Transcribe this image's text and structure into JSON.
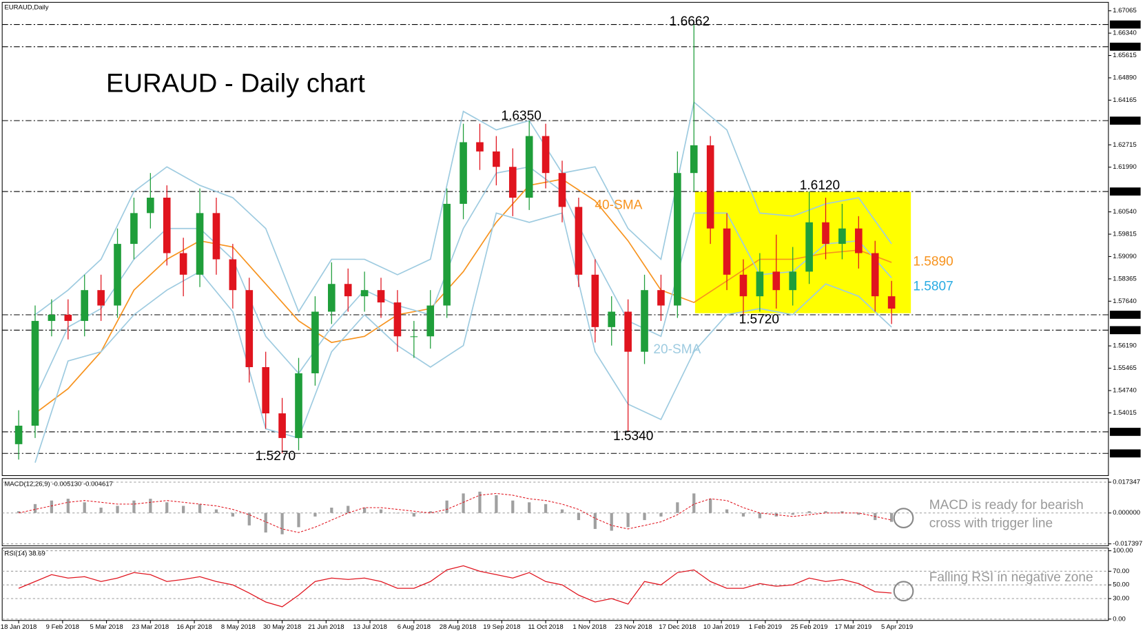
{
  "chart_data": [
    {
      "type": "candlestick",
      "title": "EURAUD - Daily chart",
      "header": "EURAUD,Daily",
      "up_color": "#1f9e3a",
      "down_color": "#e0141e",
      "x": [
        0,
        6,
        12,
        18,
        24,
        30,
        36,
        42,
        48,
        54,
        60,
        66,
        72,
        78,
        84,
        90,
        96,
        102,
        108,
        114,
        120,
        126,
        132,
        138,
        144,
        150,
        156,
        162,
        168,
        174,
        180,
        186,
        192,
        198,
        204,
        210,
        216,
        222,
        228,
        234,
        240,
        246,
        252,
        258,
        264,
        270,
        276,
        282,
        288,
        294,
        300,
        306,
        312,
        318
      ],
      "open": [
        1.53,
        1.536,
        1.57,
        1.572,
        1.57,
        1.58,
        1.575,
        1.595,
        1.605,
        1.61,
        1.592,
        1.585,
        1.605,
        1.59,
        1.58,
        1.555,
        1.54,
        1.532,
        1.553,
        1.573,
        1.582,
        1.578,
        1.58,
        1.576,
        1.565,
        1.565,
        1.575,
        1.608,
        1.628,
        1.625,
        1.62,
        1.61,
        1.63,
        1.618,
        1.607,
        1.585,
        1.568,
        1.573,
        1.56,
        1.58,
        1.575,
        1.618,
        1.627,
        1.6,
        1.585,
        1.578,
        1.586,
        1.58,
        1.586,
        1.602,
        1.595,
        1.6,
        1.592,
        1.578
      ],
      "high": [
        1.541,
        1.575,
        1.577,
        1.577,
        1.585,
        1.585,
        1.6,
        1.61,
        1.618,
        1.614,
        1.597,
        1.613,
        1.61,
        1.595,
        1.584,
        1.56,
        1.545,
        1.558,
        1.578,
        1.589,
        1.587,
        1.586,
        1.584,
        1.58,
        1.57,
        1.58,
        1.613,
        1.634,
        1.634,
        1.63,
        1.626,
        1.635,
        1.634,
        1.622,
        1.61,
        1.59,
        1.578,
        1.577,
        1.585,
        1.585,
        1.625,
        1.6662,
        1.63,
        1.605,
        1.59,
        1.592,
        1.598,
        1.594,
        1.612,
        1.61,
        1.608,
        1.604,
        1.596,
        1.583
      ],
      "low": [
        1.525,
        1.532,
        1.565,
        1.564,
        1.565,
        1.57,
        1.571,
        1.59,
        1.6,
        1.588,
        1.578,
        1.581,
        1.585,
        1.574,
        1.55,
        1.535,
        1.527,
        1.528,
        1.549,
        1.569,
        1.573,
        1.573,
        1.571,
        1.56,
        1.558,
        1.561,
        1.571,
        1.603,
        1.619,
        1.614,
        1.604,
        1.606,
        1.613,
        1.602,
        1.581,
        1.563,
        1.562,
        1.534,
        1.556,
        1.57,
        1.571,
        1.612,
        1.595,
        1.58,
        1.572,
        1.573,
        1.574,
        1.575,
        1.582,
        1.59,
        1.59,
        1.587,
        1.573,
        1.569
      ],
      "close": [
        1.536,
        1.57,
        1.572,
        1.57,
        1.58,
        1.575,
        1.595,
        1.605,
        1.61,
        1.592,
        1.585,
        1.605,
        1.59,
        1.58,
        1.555,
        1.54,
        1.532,
        1.553,
        1.573,
        1.582,
        1.578,
        1.58,
        1.576,
        1.565,
        1.565,
        1.575,
        1.608,
        1.628,
        1.625,
        1.62,
        1.61,
        1.63,
        1.618,
        1.607,
        1.585,
        1.568,
        1.573,
        1.56,
        1.58,
        1.575,
        1.618,
        1.627,
        1.6,
        1.585,
        1.578,
        1.586,
        1.58,
        1.586,
        1.602,
        1.595,
        1.6,
        1.592,
        1.578,
        1.574
      ],
      "lines": [
        {
          "name": "40-SMA",
          "color": "#f7931e",
          "x": [
            6,
            18,
            30,
            42,
            54,
            66,
            78,
            90,
            102,
            114,
            126,
            138,
            150,
            162,
            174,
            186,
            198,
            210,
            222,
            234,
            246,
            258,
            270,
            282,
            294,
            306,
            318
          ],
          "values": [
            1.54,
            1.548,
            1.56,
            1.58,
            1.59,
            1.596,
            1.594,
            1.582,
            1.57,
            1.563,
            1.565,
            1.572,
            1.574,
            1.586,
            1.602,
            1.614,
            1.616,
            1.609,
            1.596,
            1.58,
            1.576,
            1.583,
            1.59,
            1.59,
            1.592,
            1.593,
            1.589
          ]
        },
        {
          "name": "20-SMA",
          "color": "#9ecbe0",
          "x": [
            6,
            18,
            30,
            42,
            54,
            66,
            78,
            90,
            102,
            114,
            126,
            138,
            150,
            162,
            174,
            186,
            198,
            210,
            222,
            234,
            246,
            258,
            270,
            282,
            294,
            306,
            318
          ],
          "values": [
            1.545,
            1.568,
            1.574,
            1.59,
            1.6,
            1.6,
            1.59,
            1.565,
            1.553,
            1.568,
            1.58,
            1.575,
            1.572,
            1.6,
            1.618,
            1.62,
            1.612,
            1.59,
            1.57,
            1.565,
            1.605,
            1.605,
            1.585,
            1.586,
            1.595,
            1.596,
            1.584
          ]
        },
        {
          "color": "#9ecbe0",
          "x": [
            6,
            18,
            30,
            42,
            54,
            66,
            78,
            90,
            102,
            114,
            126,
            138,
            150,
            162,
            174,
            186,
            198,
            210,
            222,
            234,
            246,
            258,
            270,
            282,
            294,
            306,
            318
          ],
          "values": [
            1.572,
            1.58,
            1.59,
            1.612,
            1.62,
            1.614,
            1.61,
            1.6,
            1.573,
            1.59,
            1.59,
            1.585,
            1.59,
            1.638,
            1.632,
            1.635,
            1.618,
            1.62,
            1.6,
            1.59,
            1.641,
            1.632,
            1.605,
            1.604,
            1.608,
            1.61,
            1.595
          ]
        },
        {
          "color": "#9ecbe0",
          "x": [
            6,
            18,
            30,
            42,
            54,
            66,
            78,
            90,
            102,
            114,
            126,
            138,
            150,
            162,
            174,
            186,
            198,
            210,
            222,
            234,
            246,
            258,
            270,
            282,
            294,
            306,
            318
          ],
          "values": [
            1.524,
            1.557,
            1.56,
            1.572,
            1.58,
            1.586,
            1.573,
            1.535,
            1.532,
            1.56,
            1.572,
            1.562,
            1.555,
            1.562,
            1.605,
            1.602,
            1.605,
            1.56,
            1.543,
            1.538,
            1.56,
            1.572,
            1.574,
            1.572,
            1.582,
            1.578,
            1.568
          ]
        }
      ],
      "xlim": [
        -6,
        397
      ],
      "xticks": [
        {
          "value": 0,
          "label": "18 Jan 2018"
        },
        {
          "value": 16,
          "label": "9 Feb 2018"
        },
        {
          "value": 32,
          "label": "5 Mar 2018"
        },
        {
          "value": 48,
          "label": "23 Mar 2018"
        },
        {
          "value": 64,
          "label": "16 Apr 2018"
        },
        {
          "value": 80,
          "label": "8 May 2018"
        },
        {
          "value": 96,
          "label": "30 May 2018"
        },
        {
          "value": 112,
          "label": "21 Jun 2018"
        },
        {
          "value": 128,
          "label": "13 Jul 2018"
        },
        {
          "value": 144,
          "label": "6 Aug 2018"
        },
        {
          "value": 160,
          "label": "28 Aug 2018"
        },
        {
          "value": 176,
          "label": "19 Sep 2018"
        },
        {
          "value": 192,
          "label": "11 Oct 2018"
        },
        {
          "value": 208,
          "label": "1 Nov 2018"
        },
        {
          "value": 224,
          "label": "23 Nov 2018"
        },
        {
          "value": 240,
          "label": "17 Dec 2018"
        },
        {
          "value": 256,
          "label": "10 Jan 2019"
        },
        {
          "value": 272,
          "label": "1 Feb 2019"
        },
        {
          "value": 288,
          "label": "25 Feb 2019"
        },
        {
          "value": 304,
          "label": "17 Mar 2019"
        },
        {
          "value": 320,
          "label": "5 Apr 2019"
        }
      ],
      "ylim": [
        1.5198,
        1.6734
      ],
      "yticks": [
        1.67065,
        {
          "value": 1.6634,
          "label": "1.66340"
        },
        1.65615,
        {
          "value": 1.6489,
          "label": "1.64890"
        },
        1.64165,
        1.62715,
        {
          "value": 1.6199,
          "label": "1.61990"
        },
        {
          "value": 1.6054,
          "label": "1.60540"
        },
        1.59815,
        {
          "value": 1.5909,
          "label": "1.59090"
        },
        1.58365,
        {
          "value": 1.5764,
          "label": "1.57640"
        },
        {
          "value": 1.5619,
          "label": "1.56190"
        },
        1.55465,
        {
          "value": 1.5474,
          "label": "1.54740"
        },
        1.54015
      ],
      "levels": [
        {
          "value": 1.6662,
          "label": "1.66620"
        },
        {
          "value": 1.659,
          "label": "1.65900"
        },
        {
          "value": 1.635,
          "label": "1.63500"
        },
        {
          "value": 1.612,
          "label": "1.61200"
        },
        {
          "value": 1.572,
          "label": "1.57200"
        },
        {
          "value": 1.567,
          "label": "1.56700"
        },
        {
          "value": 1.534,
          "label": "1.53400"
        },
        {
          "value": 1.527,
          "label": "1.52700"
        }
      ],
      "annotations": [
        "1.6662",
        "1.6350",
        "1.6120",
        "1.5720",
        "1.5270",
        "1.5340",
        "1.5890",
        "1.5807"
      ]
    },
    {
      "type": "macd",
      "header": "MACD(12,26,9) -0.005130 -0.004617",
      "series": [
        {
          "color": "#a0a0a0",
          "values": [
            0.001,
            0.005,
            0.007,
            0.008,
            0.006,
            0.003,
            0.004,
            0.007,
            0.008,
            0.006,
            0.004,
            0.005,
            0.002,
            -0.002,
            -0.007,
            -0.011,
            -0.012,
            -0.008,
            -0.002,
            0.003,
            0.004,
            0.003,
            0.002,
            0.0,
            -0.002,
            0.001,
            0.007,
            0.011,
            0.012,
            0.01,
            0.007,
            0.006,
            0.005,
            0.002,
            -0.004,
            -0.009,
            -0.01,
            -0.008,
            -0.004,
            -0.002,
            0.006,
            0.011,
            0.008,
            0.002,
            -0.002,
            -0.003,
            -0.002,
            -0.001,
            0.001,
            0.001,
            0.001,
            -0.001,
            -0.004,
            -0.005
          ]
        },
        {
          "color": "#e0141e",
          "values": [
            0.0,
            0.002,
            0.004,
            0.006,
            0.007,
            0.006,
            0.005,
            0.005,
            0.006,
            0.007,
            0.006,
            0.005,
            0.004,
            0.002,
            -0.001,
            -0.005,
            -0.009,
            -0.011,
            -0.008,
            -0.004,
            0.0,
            0.003,
            0.003,
            0.002,
            0.001,
            0.0,
            0.002,
            0.006,
            0.01,
            0.011,
            0.01,
            0.008,
            0.007,
            0.005,
            0.002,
            -0.003,
            -0.007,
            -0.009,
            -0.007,
            -0.005,
            -0.001,
            0.005,
            0.008,
            0.007,
            0.003,
            0.0,
            -0.001,
            -0.002,
            -0.001,
            0.0,
            0.0,
            0.0,
            -0.002,
            -0.004
          ]
        }
      ],
      "ylim": [
        -0.0185,
        0.0194
      ],
      "yticks": [
        0.017347,
        {
          "value": 0,
          "label": "0.000000"
        },
        -0.017397
      ],
      "annotations": [
        "MACD is ready for bearish",
        "cross with trigger line"
      ]
    },
    {
      "type": "line",
      "header": "RSI(14) 38.69",
      "color": "#e0141e",
      "values": [
        45,
        55,
        65,
        60,
        62,
        55,
        60,
        68,
        65,
        55,
        58,
        62,
        55,
        50,
        38,
        25,
        18,
        35,
        55,
        60,
        58,
        60,
        55,
        45,
        45,
        55,
        72,
        78,
        70,
        65,
        60,
        68,
        55,
        50,
        35,
        25,
        30,
        22,
        55,
        50,
        68,
        72,
        55,
        45,
        45,
        52,
        48,
        50,
        60,
        55,
        58,
        52,
        40,
        38
      ],
      "ylim": [
        -2,
        104
      ],
      "yticks": [
        {
          "value": 100,
          "label": "100.00"
        },
        {
          "value": 70,
          "label": "70.00"
        },
        {
          "value": 50,
          "label": "50.00"
        },
        {
          "value": 30,
          "label": "30.00"
        },
        {
          "value": 0,
          "label": "0.00"
        }
      ],
      "annotations": [
        "Falling RSI in negative zone"
      ]
    }
  ]
}
